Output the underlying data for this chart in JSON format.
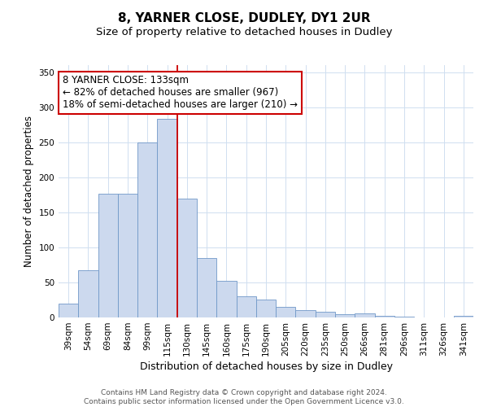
{
  "title": "8, YARNER CLOSE, DUDLEY, DY1 2UR",
  "subtitle": "Size of property relative to detached houses in Dudley",
  "xlabel": "Distribution of detached houses by size in Dudley",
  "ylabel": "Number of detached properties",
  "bar_labels": [
    "39sqm",
    "54sqm",
    "69sqm",
    "84sqm",
    "99sqm",
    "115sqm",
    "130sqm",
    "145sqm",
    "160sqm",
    "175sqm",
    "190sqm",
    "205sqm",
    "220sqm",
    "235sqm",
    "250sqm",
    "266sqm",
    "281sqm",
    "296sqm",
    "311sqm",
    "326sqm",
    "341sqm"
  ],
  "bar_heights": [
    20,
    67,
    176,
    176,
    250,
    283,
    170,
    85,
    52,
    30,
    25,
    15,
    10,
    8,
    5,
    6,
    2,
    1,
    0,
    0,
    2
  ],
  "bar_color": "#ccd9ee",
  "bar_edge_color": "#7098c8",
  "vline_color": "#cc0000",
  "ylim": [
    0,
    360
  ],
  "yticks": [
    0,
    50,
    100,
    150,
    200,
    250,
    300,
    350
  ],
  "annotation_title": "8 YARNER CLOSE: 133sqm",
  "annotation_line1": "← 82% of detached houses are smaller (967)",
  "annotation_line2": "18% of semi-detached houses are larger (210) →",
  "annotation_box_color": "#ffffff",
  "annotation_box_edge": "#cc0000",
  "footer_line1": "Contains HM Land Registry data © Crown copyright and database right 2024.",
  "footer_line2": "Contains public sector information licensed under the Open Government Licence v3.0.",
  "title_fontsize": 11,
  "subtitle_fontsize": 9.5,
  "xlabel_fontsize": 9,
  "ylabel_fontsize": 8.5,
  "tick_fontsize": 7.5,
  "annotation_fontsize": 8.5,
  "footer_fontsize": 6.5,
  "background_color": "#ffffff",
  "grid_color": "#d0dff0"
}
